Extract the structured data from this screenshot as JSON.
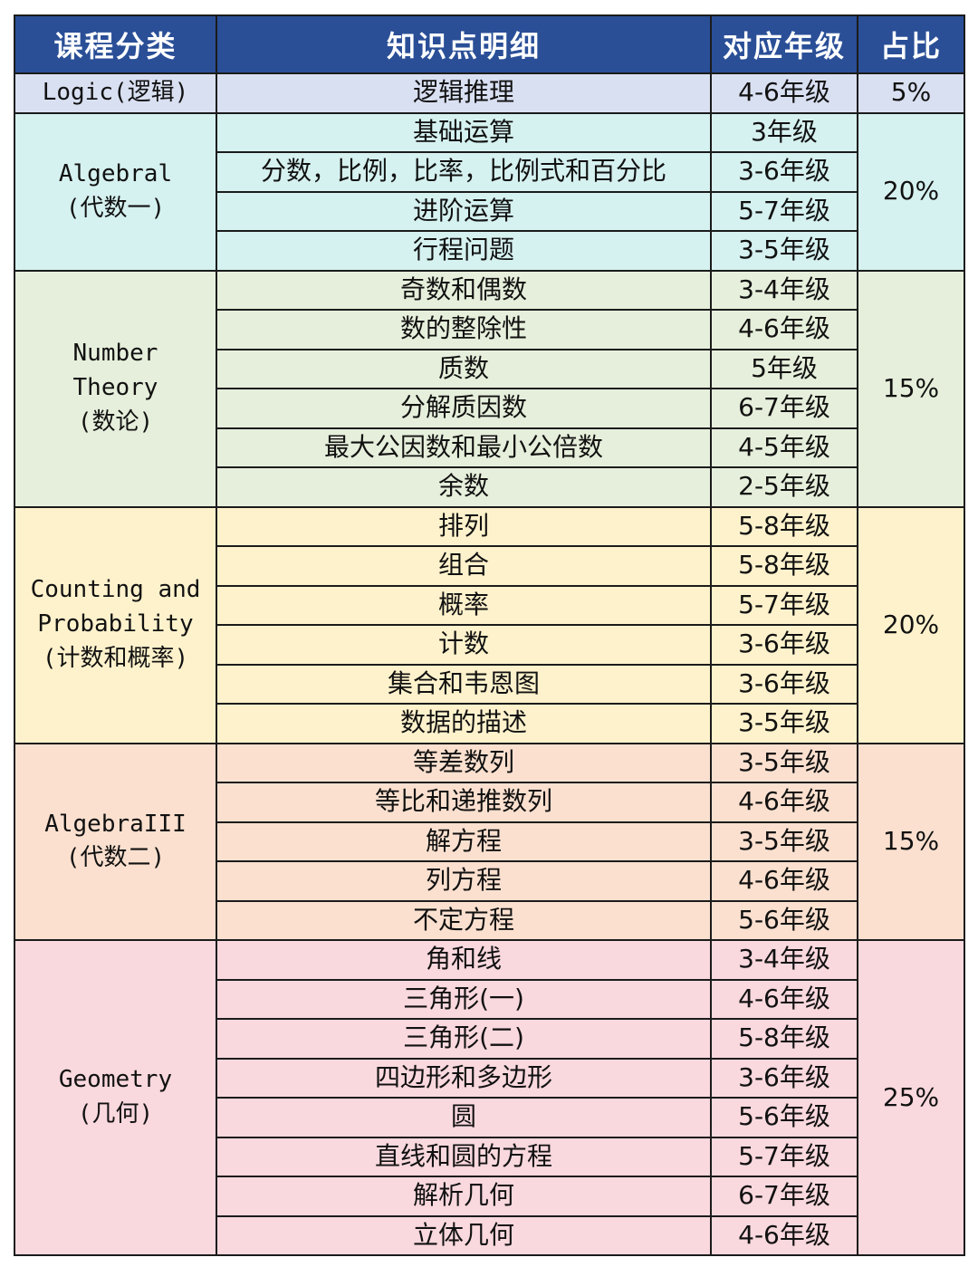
{
  "headers": [
    "课程分类",
    "知识点明细",
    "对应年级",
    "占比"
  ],
  "colors": {
    "header_bg": "#2a4f97",
    "header_text": "#ffffff",
    "logic": "#d9e0f2",
    "algebra1": "#d5f1f0",
    "number_theory": "#e6efdb",
    "counting": "#fef2cc",
    "algebra2": "#fbe0cf",
    "geometry": "#f9d8de"
  },
  "groups": [
    {
      "key": "logic",
      "category": [
        "Logic(逻辑)"
      ],
      "percent": "5%",
      "rows": [
        {
          "topic": "逻辑推理",
          "grade": "4-6年级"
        }
      ]
    },
    {
      "key": "algebra1",
      "category": [
        "Algebral",
        "(代数一)"
      ],
      "percent": "20%",
      "rows": [
        {
          "topic": "基础运算",
          "grade": "3年级"
        },
        {
          "topic": "分数，比例，比率，比例式和百分比",
          "grade": "3-6年级"
        },
        {
          "topic": "进阶运算",
          "grade": "5-7年级"
        },
        {
          "topic": "行程问题",
          "grade": "3-5年级"
        }
      ]
    },
    {
      "key": "number_theory",
      "category": [
        "Number",
        "Theory",
        "(数论)"
      ],
      "percent": "15%",
      "rows": [
        {
          "topic": "奇数和偶数",
          "grade": "3-4年级"
        },
        {
          "topic": "数的整除性",
          "grade": "4-6年级"
        },
        {
          "topic": "质数",
          "grade": "5年级"
        },
        {
          "topic": "分解质因数",
          "grade": "6-7年级"
        },
        {
          "topic": "最大公因数和最小公倍数",
          "grade": "4-5年级"
        },
        {
          "topic": "余数",
          "grade": "2-5年级"
        }
      ]
    },
    {
      "key": "counting",
      "category": [
        "Counting and",
        "Probability",
        "(计数和概率)"
      ],
      "percent": "20%",
      "rows": [
        {
          "topic": "排列",
          "grade": "5-8年级"
        },
        {
          "topic": "组合",
          "grade": "5-8年级"
        },
        {
          "topic": "概率",
          "grade": "5-7年级"
        },
        {
          "topic": "计数",
          "grade": "3-6年级"
        },
        {
          "topic": "集合和韦恩图",
          "grade": "3-6年级"
        },
        {
          "topic": "数据的描述",
          "grade": "3-5年级"
        }
      ]
    },
    {
      "key": "algebra2",
      "category": [
        "AlgebraIII",
        "(代数二)"
      ],
      "percent": "15%",
      "rows": [
        {
          "topic": "等差数列",
          "grade": "3-5年级"
        },
        {
          "topic": "等比和递推数列",
          "grade": "4-6年级"
        },
        {
          "topic": "解方程",
          "grade": "3-5年级"
        },
        {
          "topic": "列方程",
          "grade": "4-6年级"
        },
        {
          "topic": "不定方程",
          "grade": "5-6年级"
        }
      ]
    },
    {
      "key": "geometry",
      "category": [
        "Geometry",
        "(几何)"
      ],
      "percent": "25%",
      "rows": [
        {
          "topic": "角和线",
          "grade": "3-4年级"
        },
        {
          "topic": "三角形(一)",
          "grade": "4-6年级"
        },
        {
          "topic": "三角形(二)",
          "grade": "5-8年级"
        },
        {
          "topic": "四边形和多边形",
          "grade": "3-6年级"
        },
        {
          "topic": "圆",
          "grade": "5-6年级"
        },
        {
          "topic": "直线和圆的方程",
          "grade": "5-7年级"
        },
        {
          "topic": "解析几何",
          "grade": "6-7年级"
        },
        {
          "topic": "立体几何",
          "grade": "4-6年级"
        }
      ]
    }
  ]
}
